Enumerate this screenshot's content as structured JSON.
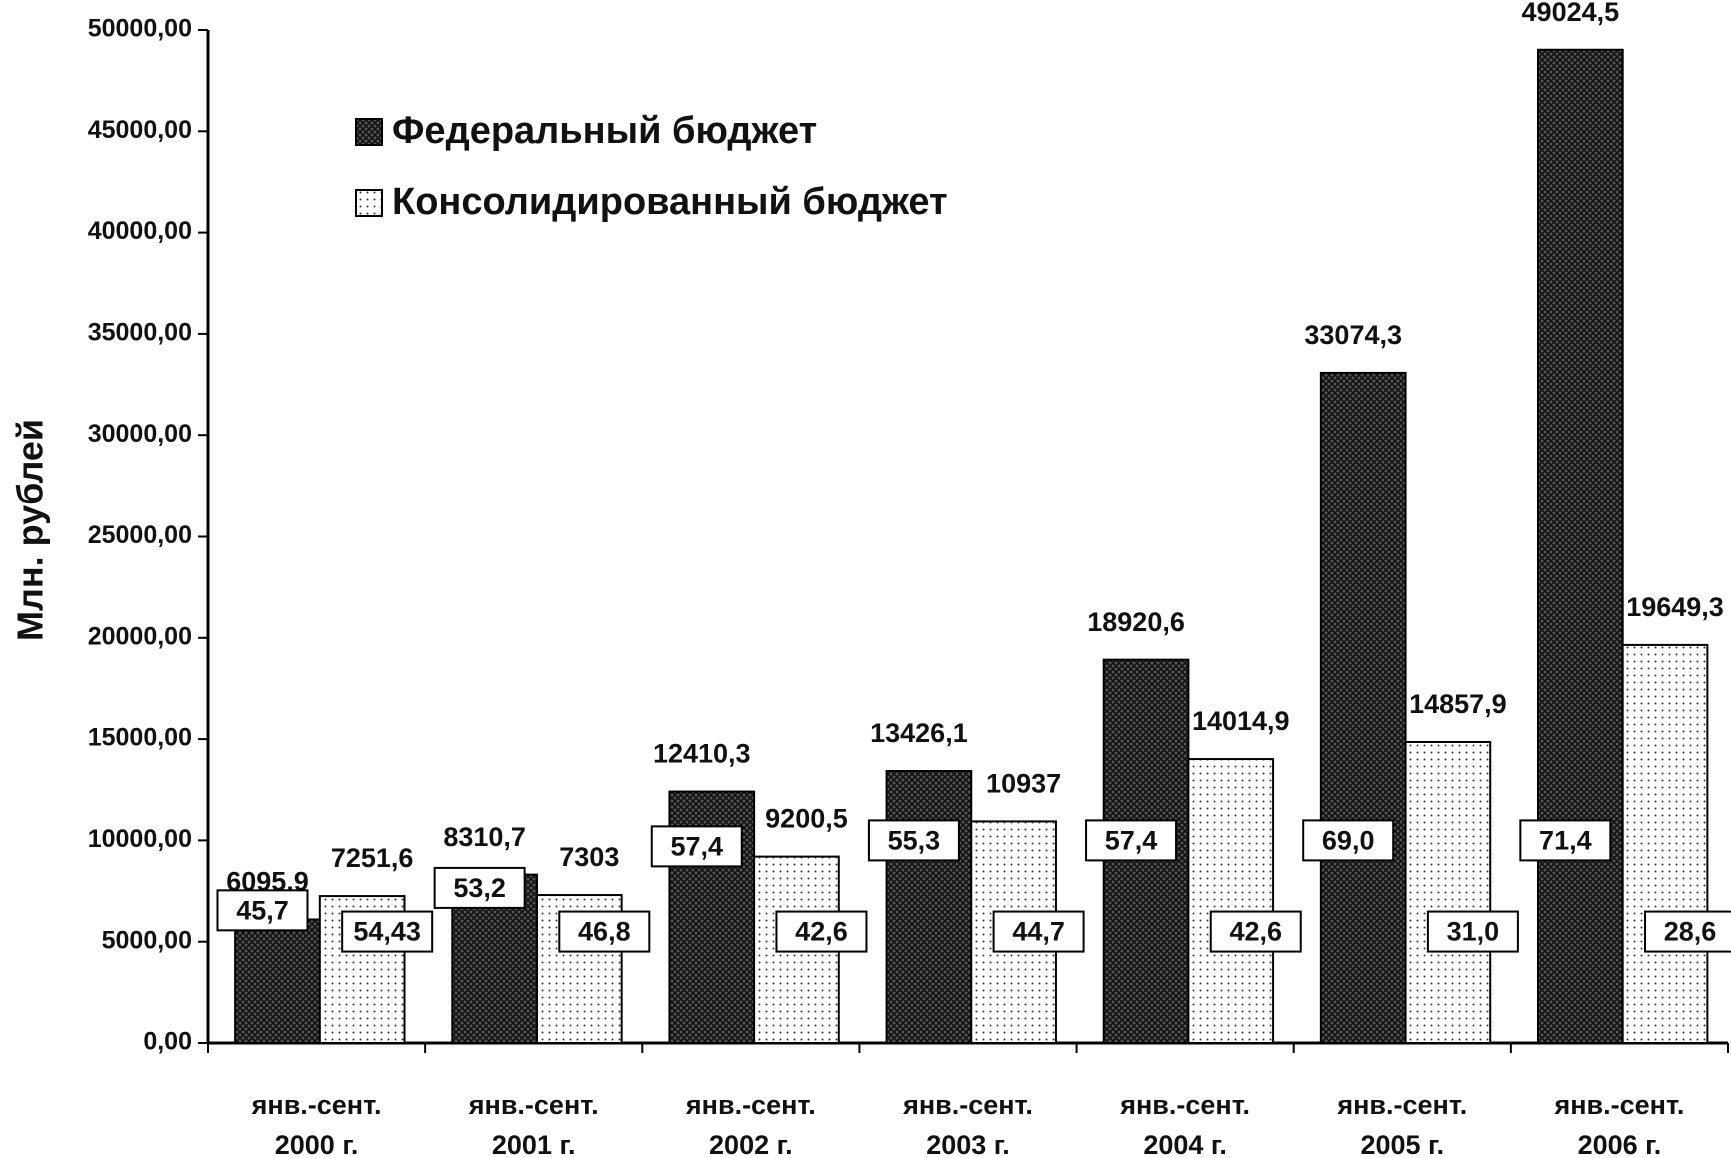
{
  "chart_data": {
    "type": "bar",
    "y_label": "Млн. рублей",
    "categories": [
      "янв.-сент.\n2000 г.",
      "янв.-сент.\n2001 г.",
      "янв.-сент.\n2002 г.",
      "янв.-сент.\n2003 г.",
      "янв.-сент.\n2004 г.",
      "янв.-сент.\n2005 г.",
      "янв.-сент.\n2006 г."
    ],
    "series": [
      {
        "name": "Федеральный бюджет",
        "color": "#2b2b2b",
        "values": [
          6095.9,
          8310.7,
          12410.3,
          13426.1,
          18920.6,
          33074.3,
          49024.5
        ],
        "value_labels": [
          "6095,9",
          "8310,7",
          "12410,3",
          "13426,1",
          "18920,6",
          "33074,3",
          "49024,5"
        ],
        "shares": [
          45.7,
          53.2,
          57.4,
          55.3,
          57.4,
          69.0,
          71.4
        ],
        "share_labels": [
          "45,7",
          "53,2",
          "57,4",
          "55,3",
          "57,4",
          "69,0",
          "71,4"
        ]
      },
      {
        "name": "Консолидированный бюджет",
        "color": "#ffffff",
        "values": [
          7251.6,
          7303,
          9200.5,
          10937,
          14014.9,
          14857.9,
          19649.3
        ],
        "value_labels": [
          "7251,6",
          "7303",
          "9200,5",
          "10937",
          "14014,9",
          "14857,9",
          "19649,3"
        ],
        "shares": [
          54.43,
          46.8,
          42.6,
          44.7,
          42.6,
          31.0,
          28.6
        ],
        "share_labels": [
          "54,43",
          "46,8",
          "42,6",
          "44,7",
          "42,6",
          "31,0",
          "28,6"
        ]
      }
    ],
    "ylim": [
      0,
      50000
    ],
    "yticks": [
      {
        "value": 0,
        "label": "0,00"
      },
      {
        "value": 5000,
        "label": "5000,00"
      },
      {
        "value": 10000,
        "label": "10000,00"
      },
      {
        "value": 15000,
        "label": "15000,00"
      },
      {
        "value": 20000,
        "label": "20000,00"
      },
      {
        "value": 25000,
        "label": "25000,00"
      },
      {
        "value": 30000,
        "label": "30000,00"
      },
      {
        "value": 35000,
        "label": "35000,00"
      },
      {
        "value": 40000,
        "label": "40000,00"
      },
      {
        "value": 45000,
        "label": "45000,00"
      },
      {
        "value": 50000,
        "label": "50000,00"
      }
    ],
    "grid": false,
    "legend": "top-left"
  }
}
